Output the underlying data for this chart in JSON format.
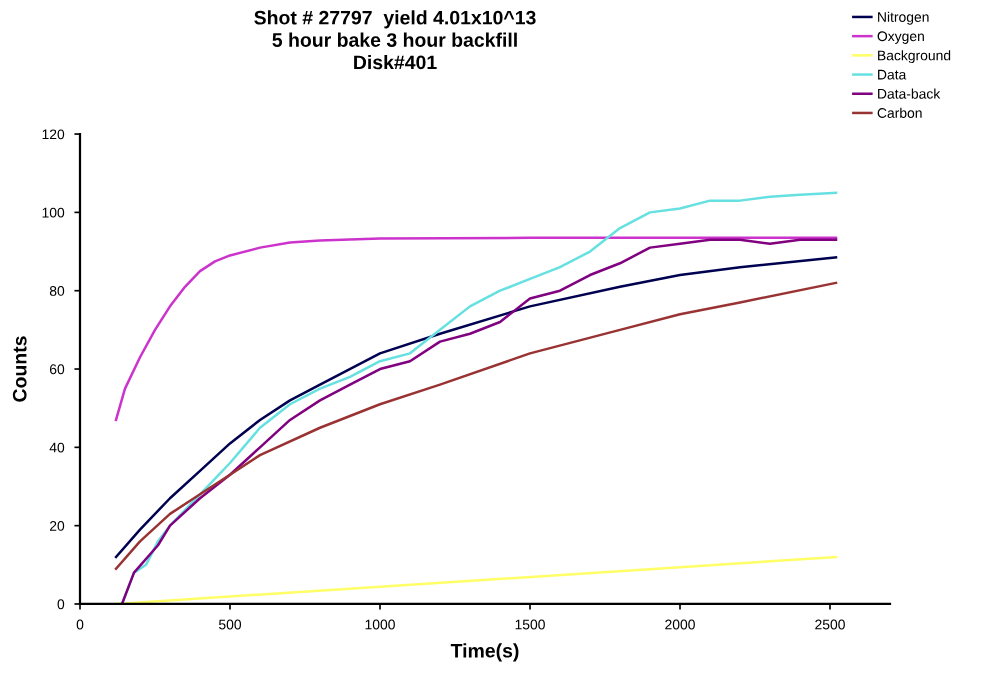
{
  "chart_data": {
    "type": "line",
    "title": "Shot # 27797  yield 4.01x10^13\n5 hour bake 3 hour backfill\nDisk#401",
    "xlabel": "Time(s)",
    "ylabel": "Counts",
    "xlim": [
      0,
      2700
    ],
    "ylim": [
      0,
      120
    ],
    "xticks": [
      0,
      500,
      1000,
      1500,
      2000,
      2500
    ],
    "yticks": [
      0,
      20,
      40,
      60,
      80,
      100,
      120
    ],
    "grid": false,
    "legend": "top right",
    "marker": "none",
    "line_style": "solid",
    "series": [
      {
        "name": "Nitrogen",
        "color": "#000050",
        "x": [
          120,
          200,
          300,
          400,
          500,
          600,
          700,
          800,
          1000,
          1200,
          1500,
          1800,
          2000,
          2200,
          2520
        ],
        "values": [
          12,
          19,
          27,
          34,
          41,
          47,
          52,
          56,
          64,
          69,
          76,
          81,
          84,
          86,
          88.5
        ]
      },
      {
        "name": "Oxygen",
        "color": "#cc33cc",
        "x": [
          120,
          150,
          200,
          250,
          300,
          350,
          400,
          450,
          500,
          600,
          700,
          800,
          1000,
          1500,
          2000,
          2520
        ],
        "values": [
          47,
          55,
          63,
          70,
          76,
          81,
          85,
          87.5,
          89,
          91,
          92.3,
          92.8,
          93.3,
          93.5,
          93.5,
          93.5
        ]
      },
      {
        "name": "Background",
        "color": "#ffff66",
        "x": [
          120,
          2520
        ],
        "values": [
          0,
          12
        ]
      },
      {
        "name": "Data",
        "color": "#66e0e0",
        "x": [
          140,
          180,
          220,
          260,
          300,
          400,
          500,
          600,
          700,
          800,
          900,
          1000,
          1100,
          1200,
          1300,
          1400,
          1500,
          1600,
          1700,
          1750,
          1800,
          1900,
          2000,
          2100,
          2200,
          2300,
          2400,
          2520
        ],
        "values": [
          0,
          8,
          10,
          16,
          20,
          28,
          36,
          45,
          51,
          55,
          58,
          62,
          64,
          70,
          76,
          80,
          83,
          86,
          90,
          93,
          96,
          100,
          101,
          103,
          103,
          104,
          104.5,
          105
        ]
      },
      {
        "name": "Data-back",
        "color": "#800080",
        "x": [
          140,
          180,
          260,
          300,
          400,
          500,
          600,
          700,
          800,
          900,
          1000,
          1100,
          1200,
          1300,
          1400,
          1500,
          1600,
          1700,
          1800,
          1900,
          2000,
          2100,
          2200,
          2300,
          2400,
          2520
        ],
        "values": [
          0,
          8,
          15,
          20,
          27,
          33,
          40,
          47,
          52,
          56,
          60,
          62,
          67,
          69,
          72,
          78,
          80,
          84,
          87,
          91,
          92,
          93,
          93,
          92,
          93,
          93
        ]
      },
      {
        "name": "Carbon",
        "color": "#993333",
        "x": [
          120,
          200,
          300,
          400,
          500,
          600,
          800,
          1000,
          1200,
          1500,
          1800,
          2000,
          2200,
          2520
        ],
        "values": [
          9,
          16,
          23,
          28,
          33,
          38,
          45,
          51,
          56,
          64,
          70,
          74,
          77,
          82
        ]
      }
    ]
  }
}
